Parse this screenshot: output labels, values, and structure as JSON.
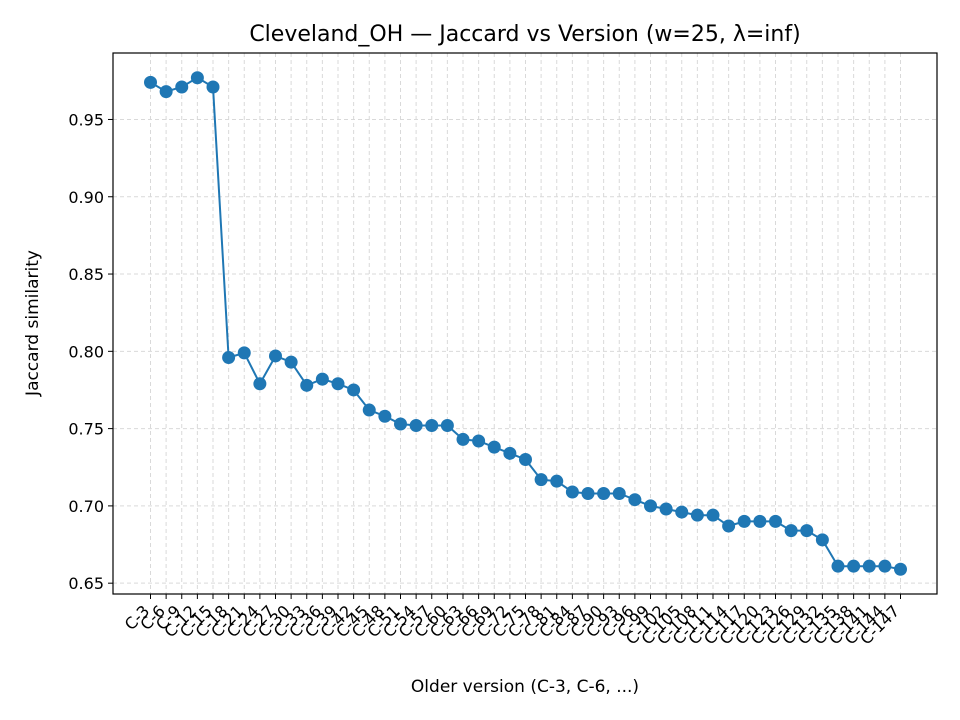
{
  "chart_data": {
    "type": "line",
    "title": "Cleveland_OH — Jaccard vs Version (w=25, λ=inf)",
    "xlabel": "Older version (C-3, C-6, ...)",
    "ylabel": "Jaccard similarity",
    "ylim": [
      0.643,
      0.993
    ],
    "yticks": [
      "0.65",
      "0.70",
      "0.75",
      "0.80",
      "0.85",
      "0.90",
      "0.95"
    ],
    "grid": true,
    "series_color": "#1f77b4",
    "categories": [
      "C-3",
      "C-6",
      "C-9",
      "C-12",
      "C-15",
      "C-18",
      "C-21",
      "C-24",
      "C-27",
      "C-30",
      "C-33",
      "C-36",
      "C-39",
      "C-42",
      "C-45",
      "C-48",
      "C-51",
      "C-54",
      "C-57",
      "C-60",
      "C-63",
      "C-66",
      "C-69",
      "C-72",
      "C-75",
      "C-78",
      "C-81",
      "C-84",
      "C-87",
      "C-90",
      "C-93",
      "C-96",
      "C-99",
      "C-102",
      "C-105",
      "C-108",
      "C-111",
      "C-114",
      "C-117",
      "C-120",
      "C-123",
      "C-126",
      "C-129",
      "C-132",
      "C-135",
      "C-138",
      "C-141",
      "C-144",
      "C-147"
    ],
    "values": [
      0.974,
      0.968,
      0.971,
      0.977,
      0.971,
      0.796,
      0.799,
      0.779,
      0.797,
      0.793,
      0.778,
      0.782,
      0.779,
      0.775,
      0.762,
      0.758,
      0.753,
      0.752,
      0.752,
      0.752,
      0.743,
      0.742,
      0.738,
      0.734,
      0.73,
      0.717,
      0.716,
      0.709,
      0.708,
      0.708,
      0.708,
      0.704,
      0.7,
      0.698,
      0.696,
      0.694,
      0.694,
      0.687,
      0.69,
      0.69,
      0.69,
      0.684,
      0.684,
      0.678,
      0.661,
      0.661,
      0.661,
      0.661,
      0.659
    ]
  }
}
